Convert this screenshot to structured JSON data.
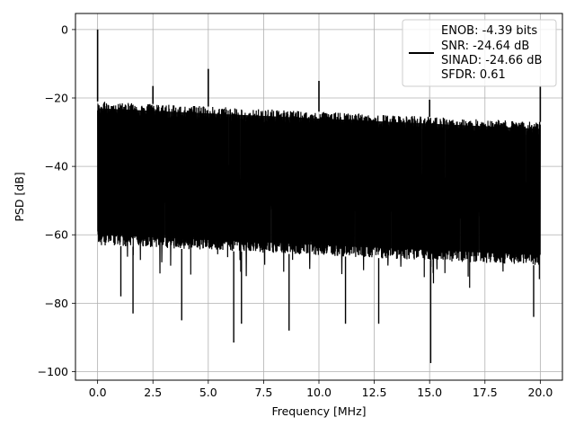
{
  "chart_data": {
    "type": "line",
    "title": "",
    "xlabel": "Frequency [MHz]",
    "ylabel": "PSD [dB]",
    "xlim": [
      -1.0,
      21.0
    ],
    "ylim": [
      -102.5,
      4.7
    ],
    "grid": true,
    "legend_placement": "top-right",
    "legend_entries": [
      "ENOB: -4.39 bits",
      "SNR: -24.64 dB",
      "SINAD: -24.66 dB",
      "SFDR: 0.61"
    ],
    "x_ticks": [
      0.0,
      2.5,
      5.0,
      7.5,
      10.0,
      12.5,
      15.0,
      17.5,
      20.0
    ],
    "x_tick_labels": [
      "0.0",
      "2.5",
      "5.0",
      "7.5",
      "10.0",
      "12.5",
      "15.0",
      "17.5",
      "20.0"
    ],
    "y_ticks": [
      0,
      -20,
      -40,
      -60,
      -80,
      -100
    ],
    "y_tick_labels": [
      "0",
      "−20",
      "−40",
      "−60",
      "−80",
      "−100"
    ],
    "series": [
      {
        "color": "#000000",
        "x_range": [
          0.0,
          20.0
        ],
        "band_upper": {
          "x": [
            0.0,
            20.0
          ],
          "y": [
            -21.0,
            -27.0
          ]
        },
        "band_lower": {
          "x": [
            0.0,
            20.0
          ],
          "y": [
            -63.0,
            -69.0
          ]
        },
        "spikes": [
          {
            "x": 0.0,
            "y": 0.0
          },
          {
            "x": 2.5,
            "y": -16.5
          },
          {
            "x": 5.0,
            "y": -11.5
          },
          {
            "x": 10.0,
            "y": -15.0
          },
          {
            "x": 15.0,
            "y": -20.5
          },
          {
            "x": 20.0,
            "y": -16.5
          }
        ],
        "dips": [
          {
            "x": 1.05,
            "y": -78
          },
          {
            "x": 1.6,
            "y": -83
          },
          {
            "x": 3.8,
            "y": -85
          },
          {
            "x": 6.15,
            "y": -91.5
          },
          {
            "x": 6.5,
            "y": -86
          },
          {
            "x": 8.65,
            "y": -88
          },
          {
            "x": 11.2,
            "y": -86
          },
          {
            "x": 12.7,
            "y": -86
          },
          {
            "x": 15.05,
            "y": -97.5
          },
          {
            "x": 19.7,
            "y": -84
          }
        ]
      }
    ]
  }
}
